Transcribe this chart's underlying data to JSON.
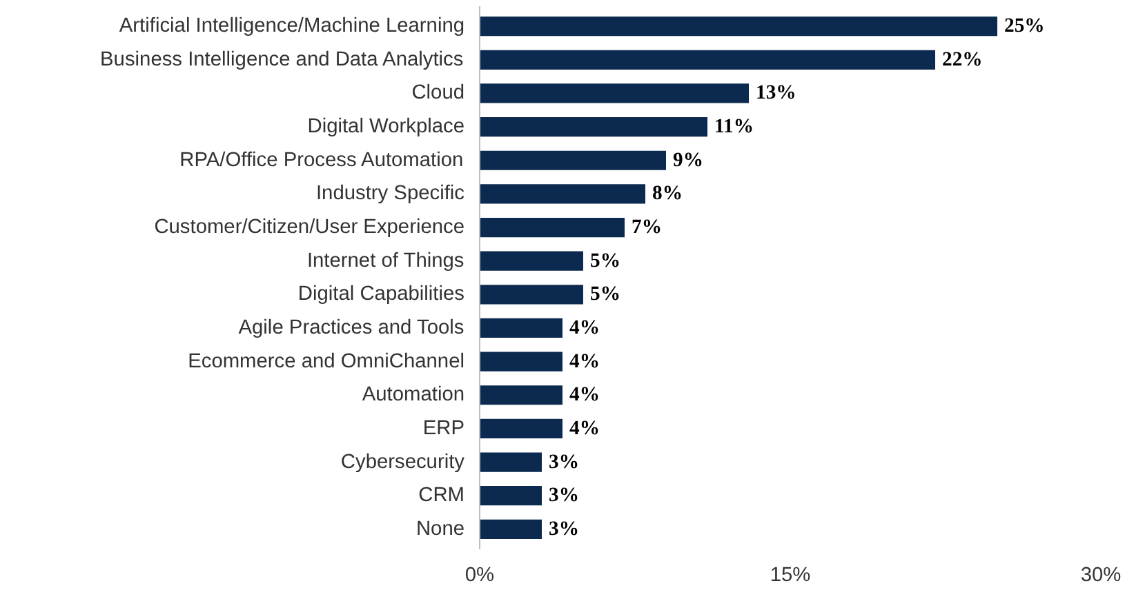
{
  "chart_data": {
    "type": "bar",
    "orientation": "horizontal",
    "categories": [
      "Artificial Intelligence/Machine Learning",
      "Business Intelligence and Data Analytics",
      "Cloud",
      "Digital Workplace",
      "RPA/Office Process Automation",
      "Industry Specific",
      "Customer/Citizen/User Experience",
      "Internet of Things",
      "Digital Capabilities",
      "Agile Practices and Tools",
      "Ecommerce and OmniChannel",
      "Automation",
      "ERP",
      "Cybersecurity",
      "CRM",
      "None"
    ],
    "values": [
      25,
      22,
      13,
      11,
      9,
      8,
      7,
      5,
      5,
      4,
      4,
      4,
      4,
      3,
      3,
      3
    ],
    "value_labels": [
      "25%",
      "22%",
      "13%",
      "11%",
      "9%",
      "8%",
      "7%",
      "5%",
      "5%",
      "4%",
      "4%",
      "4%",
      "4%",
      "3%",
      "3%",
      "3%"
    ],
    "color": "#0c2a4f",
    "xlim": [
      0,
      30
    ],
    "xticks": [
      {
        "value": 0,
        "label": "0%"
      },
      {
        "value": 15,
        "label": "15%"
      },
      {
        "value": 30,
        "label": "30%"
      }
    ],
    "grid": false
  }
}
